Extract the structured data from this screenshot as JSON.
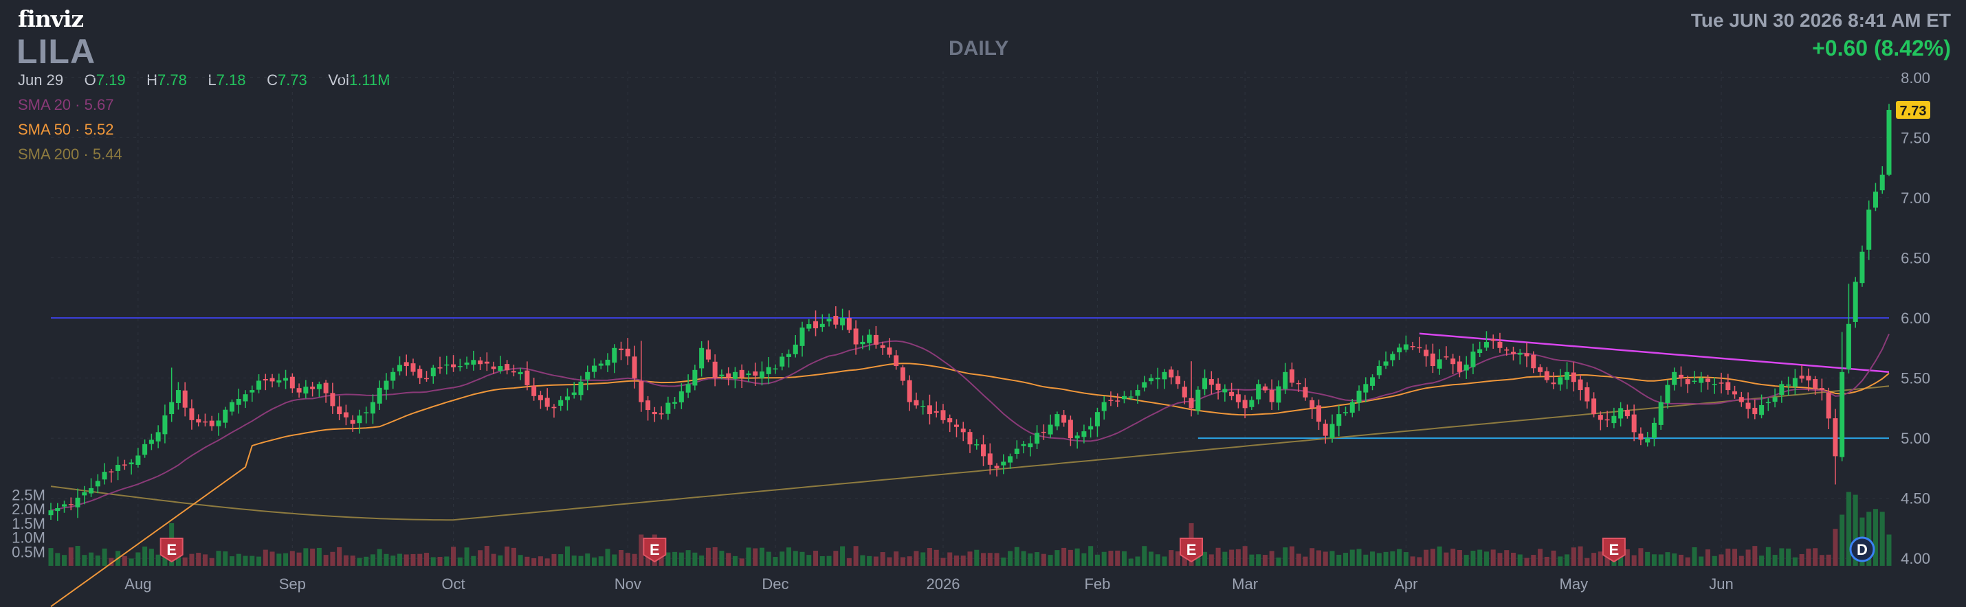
{
  "header": {
    "logo": "finviz",
    "ticker": "LILA",
    "timeframe": "DAILY",
    "datetime": "Tue JUN 30 2026 8:41 AM ET",
    "change": "+0.60 (8.42%)"
  },
  "ohlc": {
    "date": "Jun 29",
    "open_label": "O",
    "open": "7.19",
    "high_label": "H",
    "high": "7.78",
    "low_label": "L",
    "low": "7.18",
    "close_label": "C",
    "close": "7.73",
    "vol_label": "Vol",
    "vol": "1.11M"
  },
  "indicators": [
    {
      "label": "SMA 20",
      "value": "5.67",
      "color": "#8a3a78"
    },
    {
      "label": "SMA 50",
      "value": "5.52",
      "color": "#f0973a"
    },
    {
      "label": "SMA 200",
      "value": "5.44",
      "color": "#8e7b3f"
    }
  ],
  "colors": {
    "up": "#22c55e",
    "down": "#f15b6c",
    "background": "#22262f",
    "grid": "#2e333d",
    "resistance": "#3b3fd8",
    "support": "#2aa4e6",
    "trendline": "#d946ef",
    "last_price_tag": "#f5c518"
  },
  "chart_data": {
    "type": "candlestick",
    "y_ticks": [
      "8.00",
      "7.50",
      "7.00",
      "6.50",
      "6.00",
      "5.50",
      "5.00",
      "4.50",
      "4.00"
    ],
    "ylim": [
      3.95,
      8.05
    ],
    "volume_ticks": [
      "2.5M",
      "2.0M",
      "1.5M",
      "1.0M",
      "0.5M"
    ],
    "volume_lim": [
      0,
      2.9
    ],
    "x_ticks": [
      "Aug",
      "Sep",
      "Oct",
      "Nov",
      "Dec",
      "2026",
      "Feb",
      "Mar",
      "Apr",
      "May",
      "Jun"
    ],
    "x_tick_bar_index": [
      13,
      36,
      60,
      86,
      108,
      133,
      156,
      178,
      202,
      227,
      249
    ],
    "last_price": "7.73",
    "horizontal_lines": [
      {
        "name": "resistance",
        "price": 6.0,
        "from_bar": 0
      },
      {
        "name": "support",
        "price": 5.0,
        "from_bar": 171
      }
    ],
    "trendline": {
      "from": {
        "bar": 204,
        "price": 5.87
      },
      "to": {
        "bar": 274,
        "price": 5.55
      }
    },
    "events": [
      {
        "label": "E",
        "bar": 18
      },
      {
        "label": "E",
        "bar": 90
      },
      {
        "label": "E",
        "bar": 170
      },
      {
        "label": "E",
        "bar": 233
      },
      {
        "label": "D",
        "bar": 270
      }
    ],
    "anchors": [
      [
        0,
        4.4
      ],
      [
        2,
        4.45
      ],
      [
        5,
        4.55
      ],
      [
        8,
        4.72
      ],
      [
        11,
        4.78
      ],
      [
        14,
        4.95
      ],
      [
        16,
        5.05
      ],
      [
        18,
        5.3
      ],
      [
        19,
        5.4
      ],
      [
        21,
        5.15
      ],
      [
        24,
        5.1
      ],
      [
        27,
        5.3
      ],
      [
        30,
        5.4
      ],
      [
        32,
        5.48
      ],
      [
        35,
        5.5
      ],
      [
        37,
        5.38
      ],
      [
        40,
        5.45
      ],
      [
        43,
        5.2
      ],
      [
        45,
        5.12
      ],
      [
        48,
        5.3
      ],
      [
        51,
        5.55
      ],
      [
        53,
        5.6
      ],
      [
        55,
        5.5
      ],
      [
        58,
        5.58
      ],
      [
        61,
        5.6
      ],
      [
        63,
        5.65
      ],
      [
        65,
        5.62
      ],
      [
        67,
        5.6
      ],
      [
        70,
        5.55
      ],
      [
        72,
        5.35
      ],
      [
        75,
        5.25
      ],
      [
        78,
        5.38
      ],
      [
        80,
        5.55
      ],
      [
        82,
        5.62
      ],
      [
        84,
        5.75
      ],
      [
        86,
        5.68
      ],
      [
        88,
        5.3
      ],
      [
        90,
        5.2
      ],
      [
        93,
        5.3
      ],
      [
        95,
        5.45
      ],
      [
        97,
        5.75
      ],
      [
        99,
        5.5
      ],
      [
        102,
        5.55
      ],
      [
        105,
        5.52
      ],
      [
        108,
        5.58
      ],
      [
        110,
        5.7
      ],
      [
        112,
        5.92
      ],
      [
        115,
        5.95
      ],
      [
        118,
        6.0
      ],
      [
        120,
        5.78
      ],
      [
        122,
        5.86
      ],
      [
        124,
        5.75
      ],
      [
        126,
        5.6
      ],
      [
        128,
        5.3
      ],
      [
        131,
        5.2
      ],
      [
        133,
        5.15
      ],
      [
        136,
        5.05
      ],
      [
        139,
        4.85
      ],
      [
        141,
        4.75
      ],
      [
        143,
        4.85
      ],
      [
        145,
        4.95
      ],
      [
        148,
        5.05
      ],
      [
        150,
        5.2
      ],
      [
        152,
        5.0
      ],
      [
        155,
        5.1
      ],
      [
        157,
        5.3
      ],
      [
        160,
        5.35
      ],
      [
        162,
        5.4
      ],
      [
        164,
        5.5
      ],
      [
        166,
        5.55
      ],
      [
        168,
        5.45
      ],
      [
        170,
        5.25
      ],
      [
        172,
        5.5
      ],
      [
        174,
        5.4
      ],
      [
        176,
        5.35
      ],
      [
        178,
        5.25
      ],
      [
        180,
        5.45
      ],
      [
        182,
        5.3
      ],
      [
        184,
        5.55
      ],
      [
        186,
        5.45
      ],
      [
        188,
        5.25
      ],
      [
        190,
        5.02
      ],
      [
        192,
        5.2
      ],
      [
        194,
        5.3
      ],
      [
        196,
        5.45
      ],
      [
        198,
        5.6
      ],
      [
        200,
        5.7
      ],
      [
        202,
        5.78
      ],
      [
        204,
        5.75
      ],
      [
        206,
        5.6
      ],
      [
        208,
        5.68
      ],
      [
        210,
        5.55
      ],
      [
        212,
        5.72
      ],
      [
        214,
        5.8
      ],
      [
        216,
        5.75
      ],
      [
        218,
        5.7
      ],
      [
        220,
        5.68
      ],
      [
        222,
        5.55
      ],
      [
        224,
        5.45
      ],
      [
        226,
        5.55
      ],
      [
        228,
        5.4
      ],
      [
        230,
        5.2
      ],
      [
        232,
        5.15
      ],
      [
        234,
        5.25
      ],
      [
        236,
        5.05
      ],
      [
        238,
        5.0
      ],
      [
        240,
        5.3
      ],
      [
        242,
        5.55
      ],
      [
        244,
        5.45
      ],
      [
        246,
        5.5
      ],
      [
        248,
        5.45
      ],
      [
        250,
        5.4
      ],
      [
        252,
        5.3
      ],
      [
        254,
        5.2
      ],
      [
        256,
        5.3
      ],
      [
        258,
        5.45
      ],
      [
        260,
        5.5
      ],
      [
        262,
        5.48
      ],
      [
        264,
        5.4
      ],
      [
        266,
        4.85
      ],
      [
        267,
        5.55
      ],
      [
        268,
        5.95
      ],
      [
        269,
        6.3
      ],
      [
        270,
        6.55
      ],
      [
        271,
        6.9
      ],
      [
        272,
        7.05
      ],
      [
        273,
        7.19
      ],
      [
        274,
        7.73
      ]
    ]
  }
}
